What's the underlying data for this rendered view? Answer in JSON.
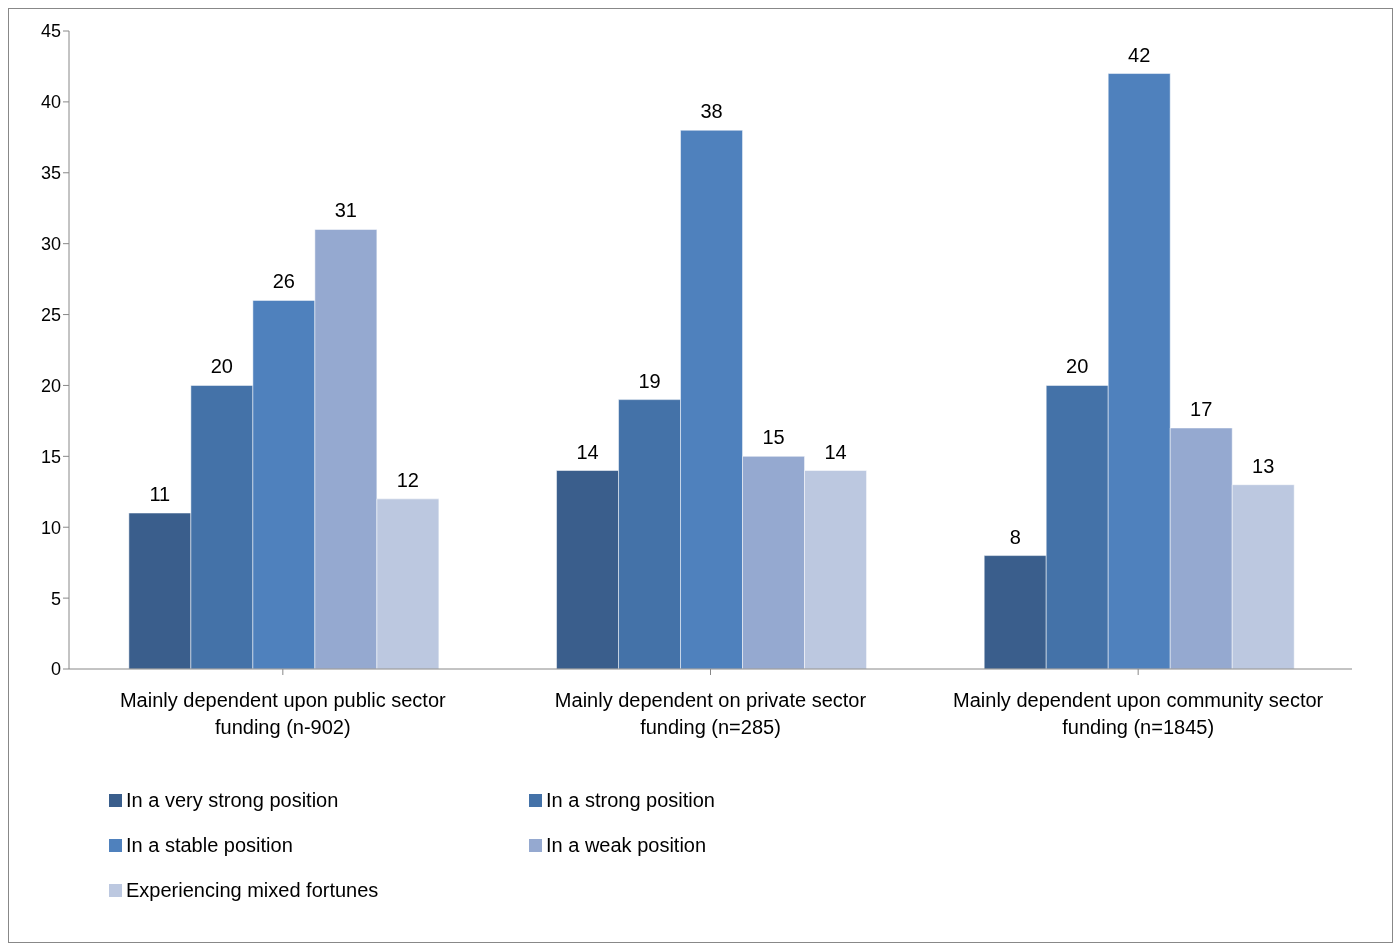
{
  "chart_data": {
    "type": "bar",
    "categories": [
      "Mainly dependent upon public sector funding (n-902)",
      "Mainly dependent on private sector funding (n=285)",
      "Mainly dependent upon community sector funding (n=1845)"
    ],
    "series": [
      {
        "name": "In a very strong position",
        "color": "#3a5e8c",
        "values": [
          11,
          14,
          8
        ]
      },
      {
        "name": "In a strong position",
        "color": "#4472a8",
        "values": [
          20,
          19,
          20
        ]
      },
      {
        "name": "In a stable position",
        "color": "#4f81bd",
        "values": [
          26,
          38,
          42
        ]
      },
      {
        "name": "In a weak position",
        "color": "#95a9d0",
        "values": [
          31,
          15,
          17
        ]
      },
      {
        "name": "Experiencing mixed fortunes",
        "color": "#bcc8e0",
        "values": [
          12,
          14,
          13
        ]
      }
    ],
    "ylim": [
      0,
      45
    ],
    "yticks": [
      0,
      5,
      10,
      15,
      20,
      25,
      30,
      35,
      40,
      45
    ],
    "grid": false,
    "legend": "bottom",
    "data_labels": true
  }
}
